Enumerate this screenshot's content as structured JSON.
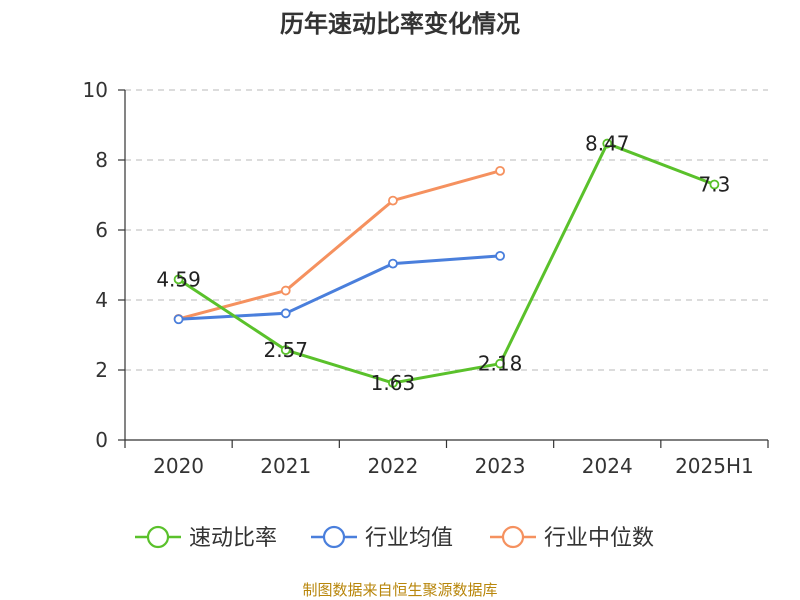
{
  "chart_data": {
    "type": "line",
    "title": "历年速动比率变化情况",
    "categories": [
      "2020",
      "2021",
      "2022",
      "2023",
      "2024",
      "2025H1"
    ],
    "ylim": [
      0,
      10
    ],
    "yticks": [
      0,
      2,
      4,
      6,
      8,
      10
    ],
    "grid": true,
    "legend_position": "bottom",
    "series": [
      {
        "name": "速动比率",
        "color": "#5ac12b",
        "values": [
          4.59,
          2.57,
          1.63,
          2.18,
          8.47,
          7.3
        ],
        "labels": [
          "4.59",
          "2.57",
          "1.63",
          "2.18",
          "8.47",
          "7.3"
        ]
      },
      {
        "name": "行业均值",
        "color": "#4a7fdc",
        "values": [
          3.45,
          3.62,
          5.04,
          5.26,
          null,
          null
        ]
      },
      {
        "name": "行业中位数",
        "color": "#f5915f",
        "values": [
          3.46,
          4.27,
          6.84,
          7.69,
          null,
          null
        ]
      }
    ]
  },
  "source_note": "制图数据来自恒生聚源数据库"
}
